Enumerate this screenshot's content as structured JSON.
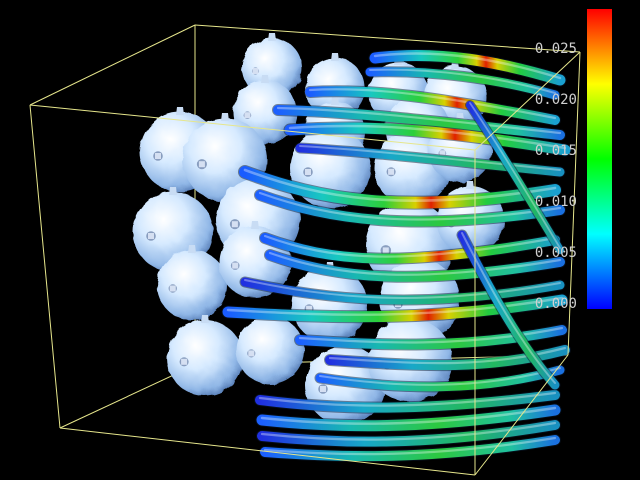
{
  "colorbar": {
    "ticks": [
      "0.025",
      "0.020",
      "0.015",
      "0.010",
      "0.005",
      "0.000"
    ],
    "colors": [
      "#0000ff",
      "#00ffff",
      "#00ff00",
      "#ffff00",
      "#ff0000"
    ]
  },
  "scene": {
    "background": "#000000",
    "box_color": "#e6e68c",
    "sphere_color": "#dceeff",
    "sphere_count": 24,
    "streamline_count": 21
  }
}
